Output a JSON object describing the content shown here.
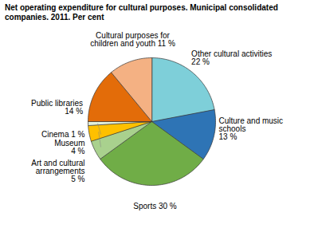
{
  "chart_data": {
    "type": "pie",
    "title": "Net operating expenditure for cultural purposes. Municipal consolidated\ncompanies. 2011. Per cent",
    "categories": [
      "Other cultural activities\n22 %",
      "Culture and music\nschools\n13 %",
      "Sports 30 %",
      "Art and cultural\narrangements\n5 %",
      "Museum\n4 %",
      "Cinema 1 %",
      "Public libraries\n14 %",
      "Cultural purposes for\nchildren and youth 11 %"
    ],
    "values": [
      22,
      13,
      30,
      5,
      4,
      1,
      14,
      11
    ],
    "colors": [
      "#7ECFD9",
      "#2E74B5",
      "#70AD47",
      "#A9D18E",
      "#FFC000",
      "#E2EFDA",
      "#E36C09",
      "#F4B183"
    ]
  }
}
